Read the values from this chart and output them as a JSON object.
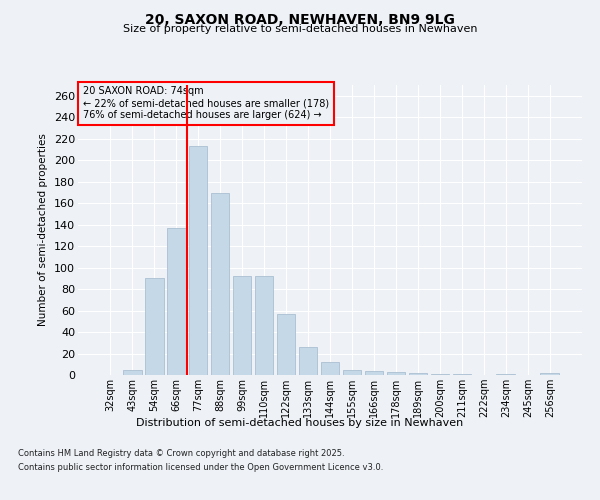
{
  "title": "20, SAXON ROAD, NEWHAVEN, BN9 9LG",
  "subtitle": "Size of property relative to semi-detached houses in Newhaven",
  "xlabel": "Distribution of semi-detached houses by size in Newhaven",
  "ylabel": "Number of semi-detached properties",
  "categories": [
    "32sqm",
    "43sqm",
    "54sqm",
    "66sqm",
    "77sqm",
    "88sqm",
    "99sqm",
    "110sqm",
    "122sqm",
    "133sqm",
    "144sqm",
    "155sqm",
    "166sqm",
    "178sqm",
    "189sqm",
    "200sqm",
    "211sqm",
    "222sqm",
    "234sqm",
    "245sqm",
    "256sqm"
  ],
  "values": [
    0,
    5,
    90,
    137,
    213,
    169,
    92,
    92,
    57,
    26,
    12,
    5,
    4,
    3,
    2,
    1,
    1,
    0,
    1,
    0,
    2
  ],
  "bar_color": "#c5d8e8",
  "bar_edge_color": "#a0b8cc",
  "red_line_index": 4,
  "annotation_title": "20 SAXON ROAD: 74sqm",
  "annotation_line1": "← 22% of semi-detached houses are smaller (178)",
  "annotation_line2": "76% of semi-detached houses are larger (624) →",
  "ylim": [
    0,
    270
  ],
  "yticks": [
    0,
    20,
    40,
    60,
    80,
    100,
    120,
    140,
    160,
    180,
    200,
    220,
    240,
    260
  ],
  "footer_line1": "Contains HM Land Registry data © Crown copyright and database right 2025.",
  "footer_line2": "Contains public sector information licensed under the Open Government Licence v3.0.",
  "bg_color": "#eef2f7",
  "grid_color": "#ffffff"
}
